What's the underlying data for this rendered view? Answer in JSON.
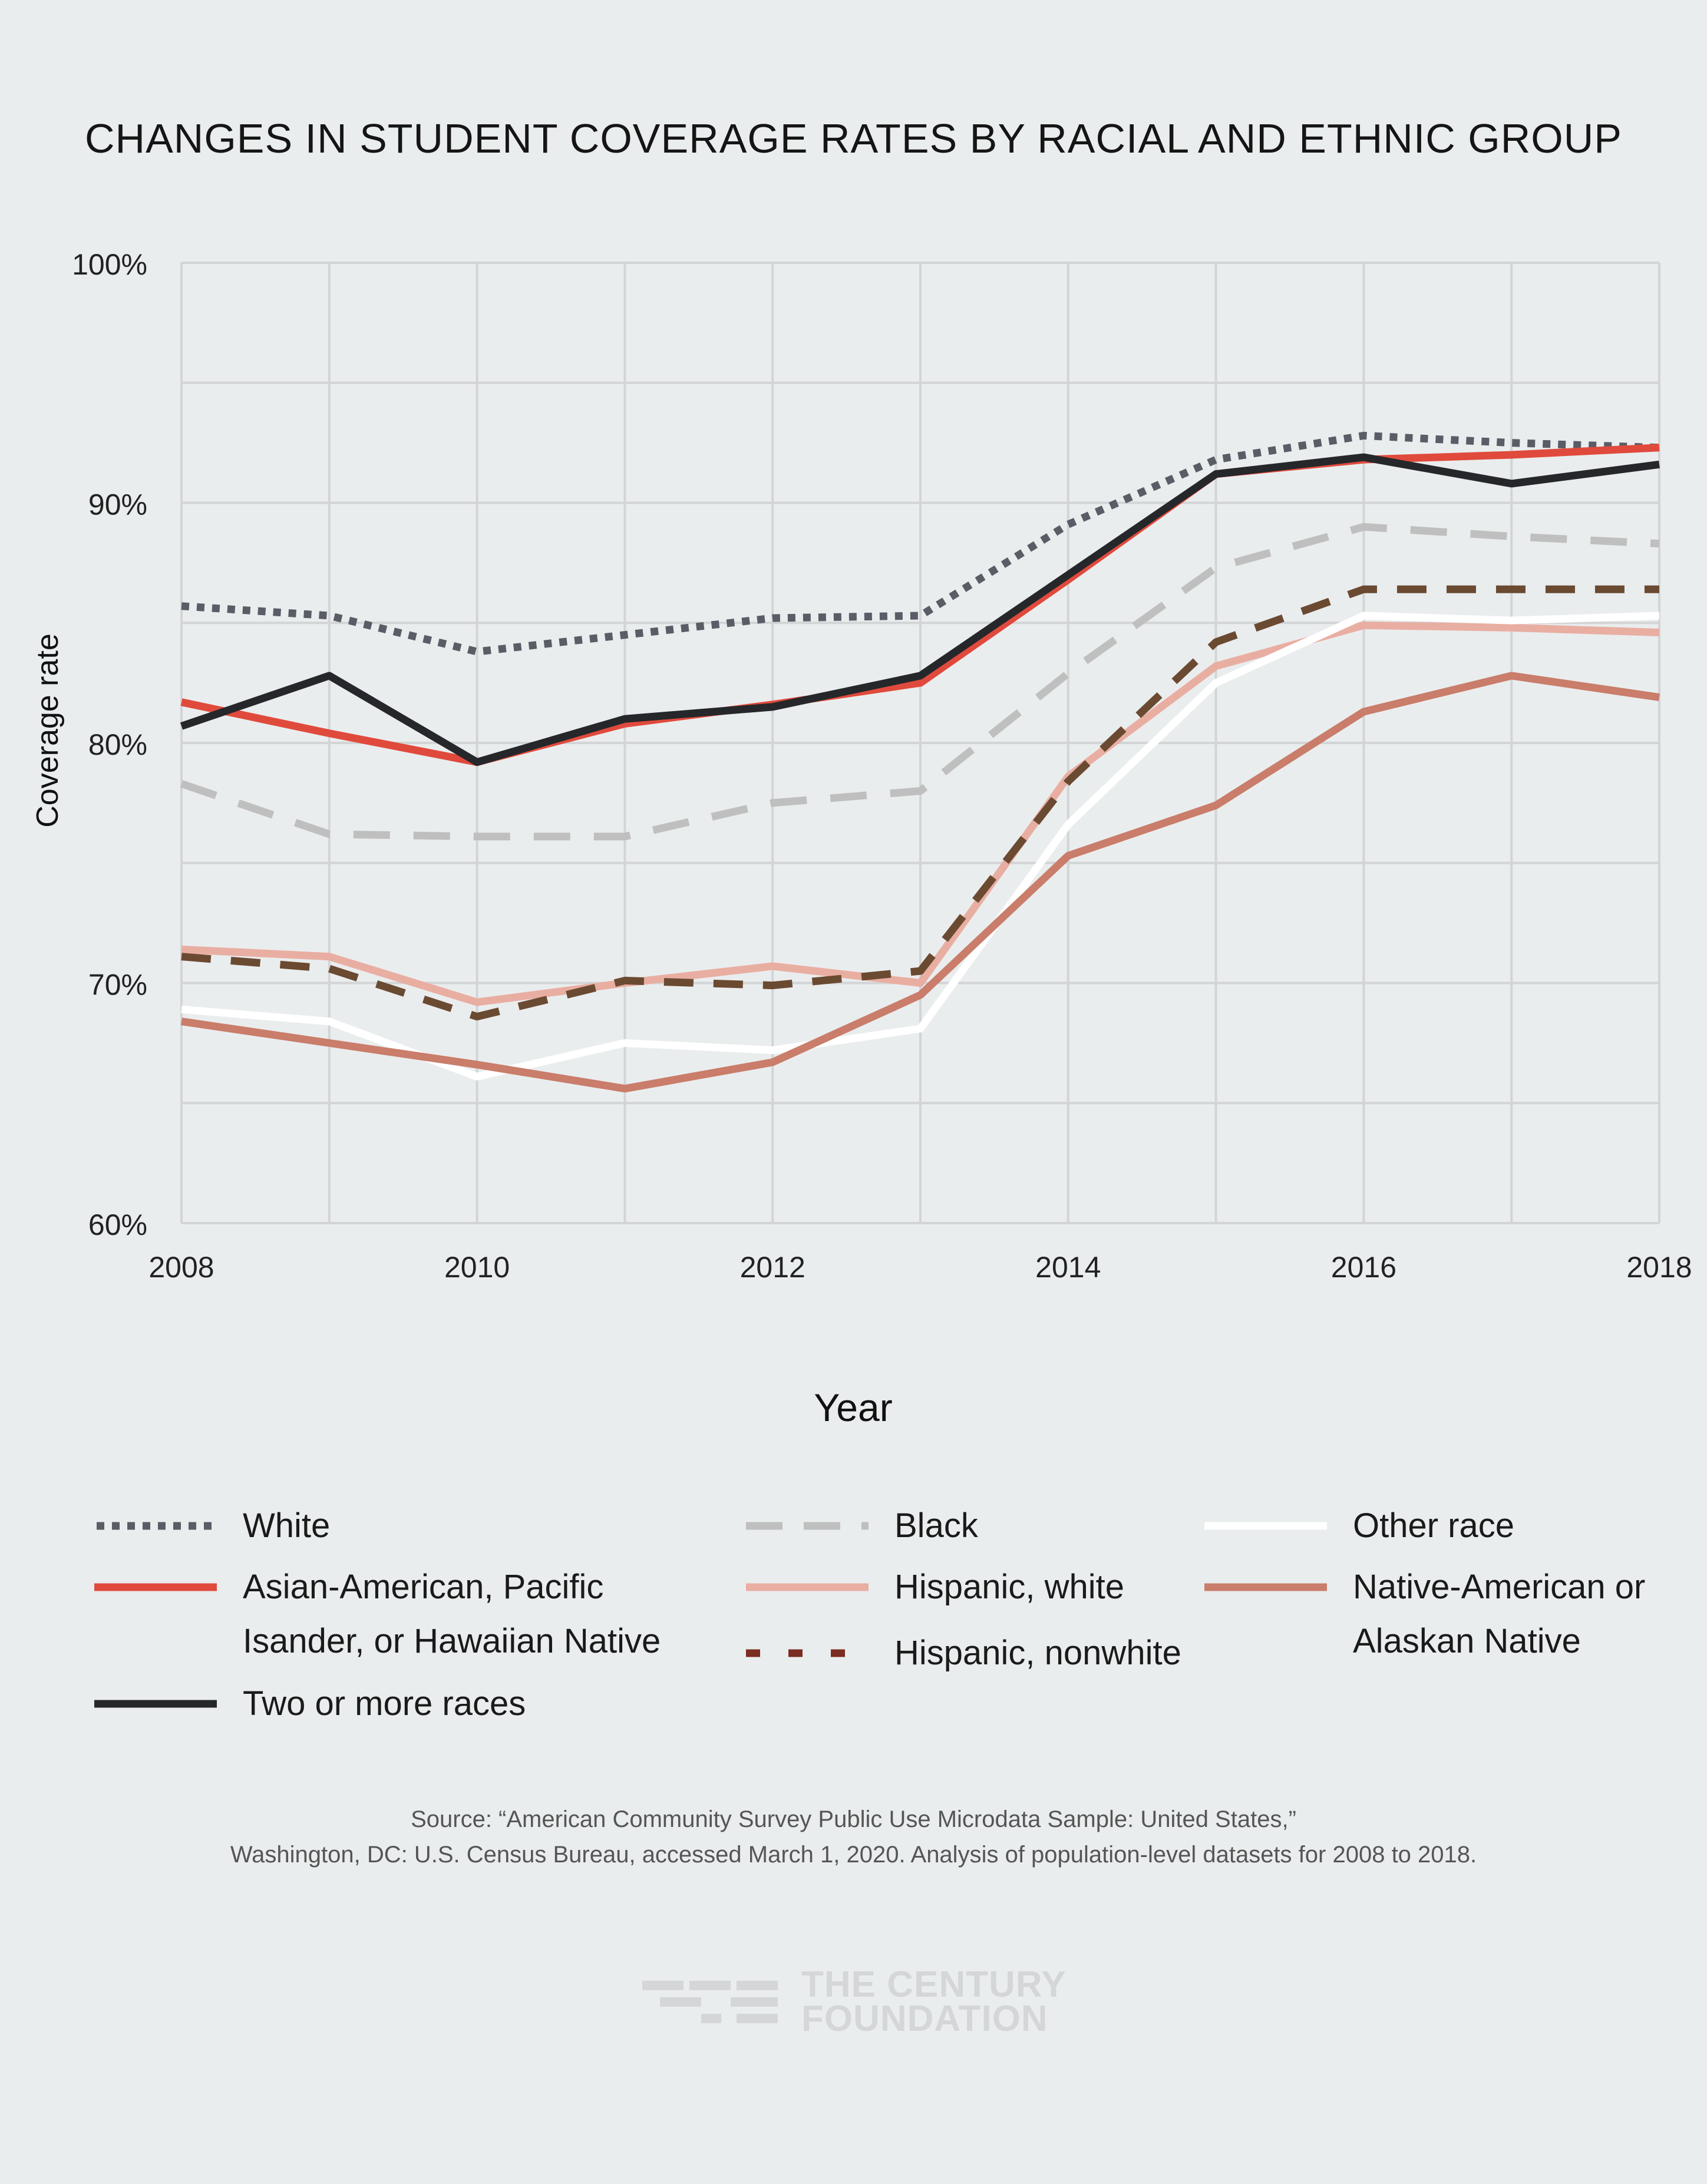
{
  "chart_data": {
    "type": "line",
    "title": "CHANGES IN STUDENT COVERAGE RATES BY RACIAL AND ETHNIC GROUP",
    "xlabel": "Year",
    "ylabel": "Coverage rate",
    "x": [
      2008,
      2009,
      2010,
      2011,
      2012,
      2013,
      2014,
      2015,
      2016,
      2017,
      2018
    ],
    "xticks": [
      "2008",
      "2010",
      "2012",
      "2014",
      "2016",
      "2018"
    ],
    "yticks": [
      "60%",
      "70%",
      "80%",
      "90%",
      "100%"
    ],
    "ylim": [
      60,
      100
    ],
    "grid": true,
    "series": [
      {
        "name": "White",
        "style": "dotted",
        "color": "#5a5d66",
        "values": [
          85.7,
          85.3,
          83.8,
          84.5,
          85.2,
          85.3,
          89.1,
          91.8,
          92.8,
          92.5,
          92.3
        ]
      },
      {
        "name": "Asian-American, Pacific Isander, or Hawaiian Native",
        "style": "solid",
        "color": "#e04a3c",
        "values": [
          81.7,
          80.4,
          79.2,
          80.8,
          81.6,
          82.5,
          86.8,
          91.2,
          91.8,
          92.0,
          92.3
        ]
      },
      {
        "name": "Two or more races",
        "style": "solid",
        "color": "#25272b",
        "values": [
          80.7,
          82.8,
          79.2,
          81.0,
          81.5,
          82.8,
          87.0,
          91.2,
          91.9,
          90.8,
          91.6
        ]
      },
      {
        "name": "Black",
        "style": "dashed",
        "color": "#bfbfbf",
        "values": [
          78.3,
          76.2,
          76.1,
          76.1,
          77.5,
          78.0,
          82.9,
          87.3,
          89.0,
          88.6,
          88.3
        ]
      },
      {
        "name": "Hispanic, white",
        "style": "solid",
        "color": "#e9aea2",
        "values": [
          71.4,
          71.1,
          69.2,
          70.0,
          70.7,
          70.0,
          78.6,
          83.2,
          84.9,
          84.8,
          84.6
        ]
      },
      {
        "name": "Hispanic, nonwhite",
        "style": "dashed-dark",
        "color": "#6b4a32",
        "values": [
          71.1,
          70.6,
          68.6,
          70.1,
          69.9,
          70.5,
          78.4,
          84.2,
          86.4,
          86.4,
          86.4
        ]
      },
      {
        "name": "Other race",
        "style": "solid",
        "color": "#ffffff",
        "values": [
          68.9,
          68.4,
          66.1,
          67.5,
          67.2,
          68.1,
          76.6,
          82.5,
          85.3,
          85.1,
          85.3
        ]
      },
      {
        "name": "Native-American or Alaskan Native",
        "style": "solid",
        "color": "#c97d6a",
        "values": [
          68.4,
          67.5,
          66.6,
          65.6,
          66.7,
          69.5,
          75.3,
          77.4,
          81.3,
          82.8,
          81.9
        ]
      }
    ]
  },
  "legend": {
    "white": "White",
    "asian_line1": "Asian-American, Pacific",
    "asian_line2": "Isander, or Hawaiian Native",
    "two_or_more": "Two or more races",
    "black": "Black",
    "hispanic_white": "Hispanic, white",
    "hispanic_nonwhite": "Hispanic, nonwhite",
    "other_race": "Other race",
    "native_line1": "Native-American or",
    "native_line2": "Alaskan Native"
  },
  "source": {
    "line1": "Source:  “American Community Survey Public Use Microdata Sample: United States,”",
    "line2": "Washington, DC: U.S. Census Bureau, accessed March 1, 2020. Analysis of population-level datasets for 2008 to 2018."
  },
  "logo": {
    "line1": "THE CENTURY",
    "line2": "FOUNDATION"
  }
}
